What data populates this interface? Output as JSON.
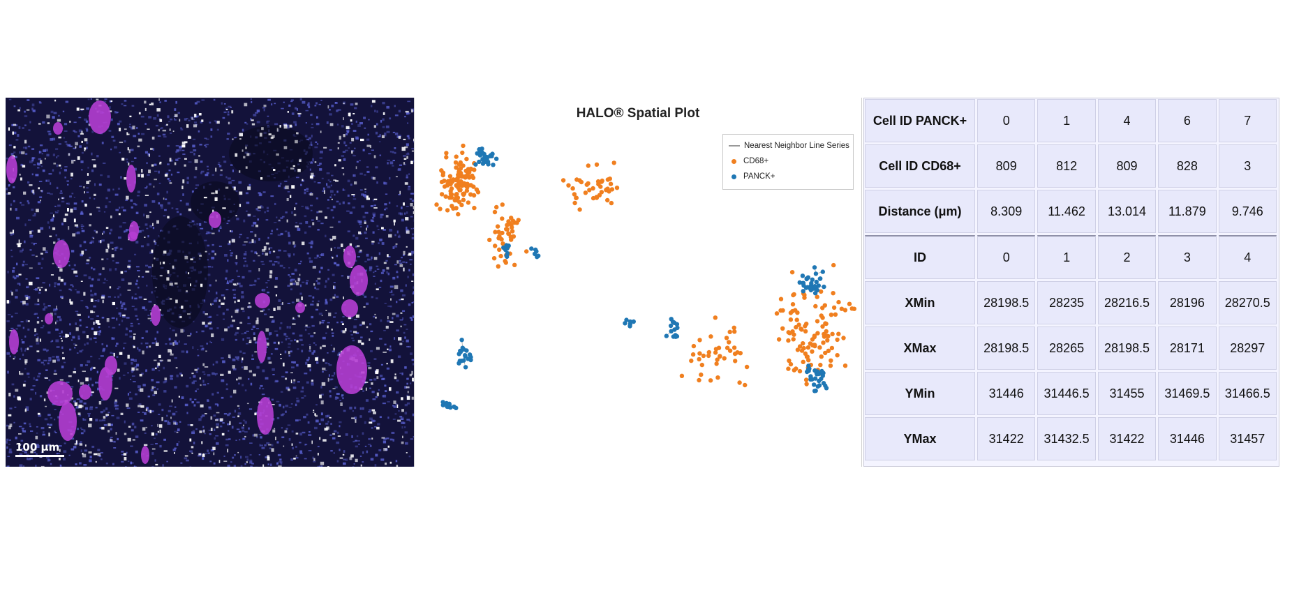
{
  "micrograph": {
    "scale_bar_label": "100 μm",
    "colors": {
      "background": "#13123a",
      "nuclei": "#5d64d8",
      "panck": "#b53ed3",
      "cd68": "#ffffff"
    }
  },
  "chart_data": {
    "type": "scatter",
    "title": "HALO® Spatial Plot",
    "xlabel": "",
    "ylabel": "",
    "grid": false,
    "legend_position": "top-right",
    "legend": [
      {
        "name": "Nearest Neighbor Line Series",
        "color": "#999999",
        "marker": "line"
      },
      {
        "name": "CD68+",
        "color": "#f07f1f",
        "marker": "circle"
      },
      {
        "name": "PANCK+",
        "color": "#1f77b4",
        "marker": "circle"
      }
    ],
    "series": [
      {
        "name": "CD68+",
        "color": "#f07f1f",
        "regions": [
          {
            "center": [
              55,
              80
            ],
            "spread": [
              45,
              60
            ],
            "count": 110
          },
          {
            "center": [
              120,
              160
            ],
            "spread": [
              35,
              60
            ],
            "count": 45
          },
          {
            "center": [
              250,
              90
            ],
            "spread": [
              60,
              50
            ],
            "count": 40
          },
          {
            "center": [
              560,
              300
            ],
            "spread": [
              80,
              120
            ],
            "count": 110
          },
          {
            "center": [
              420,
              330
            ],
            "spread": [
              70,
              70
            ],
            "count": 40
          }
        ]
      },
      {
        "name": "PANCK+",
        "color": "#1f77b4",
        "regions": [
          {
            "center": [
              90,
              45
            ],
            "spread": [
              20,
              20
            ],
            "count": 28
          },
          {
            "center": [
              120,
              180
            ],
            "spread": [
              10,
              20
            ],
            "count": 10
          },
          {
            "center": [
              60,
              330
            ],
            "spread": [
              15,
              25
            ],
            "count": 18
          },
          {
            "center": [
              35,
              400
            ],
            "spread": [
              15,
              10
            ],
            "count": 10
          },
          {
            "center": [
              555,
              230
            ],
            "spread": [
              30,
              30
            ],
            "count": 30
          },
          {
            "center": [
              565,
              360
            ],
            "spread": [
              25,
              30
            ],
            "count": 30
          },
          {
            "center": [
              360,
              290
            ],
            "spread": [
              15,
              25
            ],
            "count": 14
          },
          {
            "center": [
              295,
              280
            ],
            "spread": [
              10,
              10
            ],
            "count": 6
          },
          {
            "center": [
              160,
              180
            ],
            "spread": [
              10,
              10
            ],
            "count": 6
          }
        ]
      }
    ]
  },
  "table": {
    "row_headers": [
      "Cell ID PANCK+",
      "Cell ID CD68+",
      "Distance (μm)",
      "ID",
      "XMin",
      "XMax",
      "YMin",
      "YMax"
    ],
    "rows": [
      [
        "0",
        "1",
        "4",
        "6",
        "7"
      ],
      [
        "809",
        "812",
        "809",
        "828",
        "3"
      ],
      [
        "8.309",
        "11.462",
        "13.014",
        "11.879",
        "9.746"
      ],
      [
        "0",
        "1",
        "2",
        "3",
        "4"
      ],
      [
        "28198.5",
        "28235",
        "28216.5",
        "28196",
        "28270.5"
      ],
      [
        "28198.5",
        "28265",
        "28198.5",
        "28171",
        "28297"
      ],
      [
        "31446",
        "31446.5",
        "31455",
        "31469.5",
        "31466.5"
      ],
      [
        "31422",
        "31432.5",
        "31422",
        "31446",
        "31457"
      ]
    ]
  }
}
